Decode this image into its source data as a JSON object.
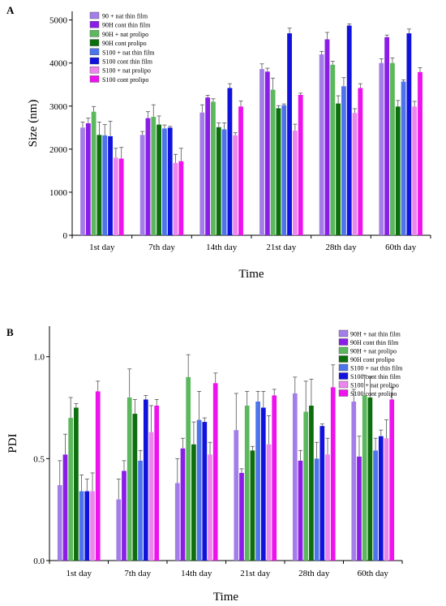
{
  "chart_data": [
    {
      "panel_label": "A",
      "type": "bar",
      "xlabel": "Time",
      "ylabel": "Size (nm)",
      "ylim": [
        0,
        5200
      ],
      "yticks": [
        0,
        1000,
        2000,
        3000,
        4000,
        5000
      ],
      "categories": [
        "1st day",
        "7th day",
        "14th day",
        "21st day",
        "28th day",
        "60th day"
      ],
      "legend_position": "top-left",
      "series": [
        {
          "name": "90 + nat thin film",
          "color": "#a47ee8",
          "values": [
            2500,
            2330,
            2850,
            3860,
            4200,
            4000
          ],
          "errors": [
            130,
            80,
            180,
            120,
            70,
            100
          ]
        },
        {
          "name": "90H cont thin film",
          "color": "#8a1ee6",
          "values": [
            2600,
            2720,
            3200,
            3800,
            4550,
            4600
          ],
          "errors": [
            120,
            150,
            50,
            80,
            160,
            50
          ]
        },
        {
          "name": "90H + nat prolipo",
          "color": "#5cb85c",
          "values": [
            2870,
            2750,
            3100,
            3380,
            3960,
            4000
          ],
          "errors": [
            120,
            280,
            70,
            270,
            80,
            120
          ]
        },
        {
          "name": "90H cont prolipo",
          "color": "#0c6e0c",
          "values": [
            2330,
            2570,
            2510,
            2950,
            3060,
            2990
          ],
          "errors": [
            300,
            200,
            100,
            60,
            180,
            140
          ]
        },
        {
          "name": "S100 + nat thin film",
          "color": "#4d74ea",
          "values": [
            2320,
            2480,
            2460,
            3020,
            3460,
            3570
          ],
          "errors": [
            250,
            80,
            150,
            30,
            200,
            40
          ]
        },
        {
          "name": "S100 cont thin film",
          "color": "#1212dd",
          "values": [
            2300,
            2500,
            3420,
            4690,
            4870,
            4690
          ],
          "errors": [
            350,
            30,
            100,
            120,
            40,
            100
          ]
        },
        {
          "name": "S100 + nat prolipo",
          "color": "#ec86ec",
          "values": [
            1800,
            1680,
            2320,
            2430,
            2840,
            2990
          ],
          "errors": [
            220,
            200,
            60,
            150,
            100,
            120
          ]
        },
        {
          "name": "S100 cont prolipo",
          "color": "#ee12ee",
          "values": [
            1780,
            1720,
            2990,
            3260,
            3420,
            3790
          ],
          "errors": [
            260,
            300,
            130,
            40,
            100,
            100
          ]
        }
      ]
    },
    {
      "panel_label": "B",
      "type": "bar",
      "xlabel": "Time",
      "ylabel": "PDI",
      "ylim": [
        0,
        1.15
      ],
      "yticks": [
        "0.0",
        "0.5",
        "1.0"
      ],
      "categories": [
        "1st day",
        "7th day",
        "14th day",
        "21st day",
        "28th day",
        "60th day"
      ],
      "legend_position": "top-right",
      "series": [
        {
          "name": "90H + nat thin film",
          "color": "#a47ee8",
          "values": [
            0.37,
            0.3,
            0.38,
            0.64,
            0.82,
            0.78
          ],
          "errors": [
            0.12,
            0.1,
            0.12,
            0.18,
            0.08,
            0.06
          ]
        },
        {
          "name": "90H cont thin film",
          "color": "#8a1ee6",
          "values": [
            0.52,
            0.44,
            0.55,
            0.43,
            0.49,
            0.51
          ],
          "errors": [
            0.1,
            0.05,
            0.05,
            0.02,
            0.05,
            0.1
          ]
        },
        {
          "name": "90H + nat prolipo",
          "color": "#5cb85c",
          "values": [
            0.7,
            0.8,
            0.9,
            0.76,
            0.73,
            0.81
          ],
          "errors": [
            0.1,
            0.14,
            0.11,
            0.07,
            0.15,
            0.1
          ]
        },
        {
          "name": "90H cont prolipo",
          "color": "#0c6e0c",
          "values": [
            0.75,
            0.72,
            0.57,
            0.54,
            0.76,
            0.8
          ],
          "errors": [
            0.02,
            0.07,
            0.11,
            0.02,
            0.13,
            0.1
          ]
        },
        {
          "name": "S100 + nat thin film",
          "color": "#4d74ea",
          "values": [
            0.34,
            0.49,
            0.69,
            0.78,
            0.5,
            0.54
          ],
          "errors": [
            0.08,
            0.05,
            0.14,
            0.05,
            0.08,
            0.06
          ]
        },
        {
          "name": "S100 cont thin film",
          "color": "#1212dd",
          "values": [
            0.34,
            0.79,
            0.68,
            0.75,
            0.66,
            0.61
          ],
          "errors": [
            0.06,
            0.02,
            0.02,
            0.08,
            0.01,
            0.03
          ]
        },
        {
          "name": "S100 + nat prolipo",
          "color": "#ec86ec",
          "values": [
            0.34,
            0.63,
            0.52,
            0.57,
            0.52,
            0.6
          ],
          "errors": [
            0.09,
            0.13,
            0.06,
            0.14,
            0.08,
            0.09
          ]
        },
        {
          "name": "S100 cont prolipo",
          "color": "#ee12ee",
          "values": [
            0.83,
            0.76,
            0.87,
            0.81,
            0.85,
            0.79
          ],
          "errors": [
            0.05,
            0.03,
            0.05,
            0.03,
            0.11,
            0.06
          ]
        }
      ]
    }
  ]
}
